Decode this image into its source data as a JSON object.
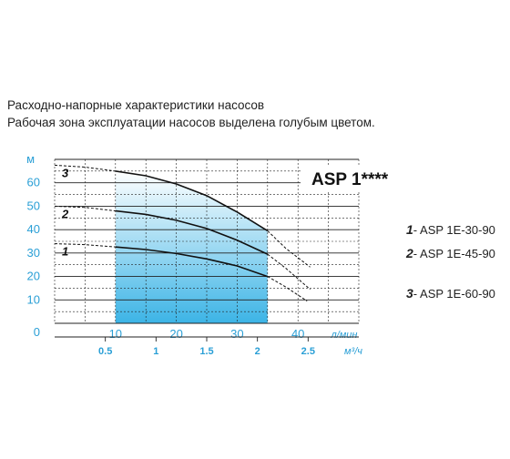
{
  "captions": {
    "line1": "Расходно-напорные характеристики насосов",
    "line2": "Рабочая зона эксплуатации насосов выделена голубым цветом."
  },
  "chart_data": {
    "type": "line",
    "title": "ASP 1****",
    "ylabel": "м",
    "xlabel": "л/мин",
    "x2label": "м³/ч",
    "ylim": [
      0,
      70
    ],
    "xlim": [
      0,
      50
    ],
    "y_ticks": [
      "0",
      "10",
      "20",
      "30",
      "40",
      "50",
      "60"
    ],
    "x_ticks": [
      "10",
      "20",
      "30",
      "40"
    ],
    "x2_ticks": [
      "0.5",
      "1",
      "1.5",
      "2",
      "2.5"
    ],
    "working_zone": {
      "x_from": 10,
      "x_to": 35,
      "color": "#3cb4e6"
    },
    "grid": true,
    "series": [
      {
        "id": "1",
        "name": "ASP 1E-30-90",
        "solid": {
          "x": [
            10,
            15,
            20,
            25,
            30,
            35
          ],
          "y": [
            32.6,
            31.5,
            29.8,
            27.5,
            24.5,
            20.0
          ]
        },
        "dashed_left": {
          "x": [
            0,
            5,
            10
          ],
          "y": [
            34.0,
            33.6,
            32.6
          ]
        },
        "dashed_right": {
          "x": [
            35,
            38,
            41.5
          ],
          "y": [
            20.0,
            15.5,
            9.5
          ]
        }
      },
      {
        "id": "2",
        "name": "ASP 1E-45-90",
        "solid": {
          "x": [
            10,
            15,
            20,
            25,
            30,
            35
          ],
          "y": [
            48.0,
            46.5,
            44.0,
            40.5,
            35.5,
            29.5
          ]
        },
        "dashed_left": {
          "x": [
            0,
            5,
            10
          ],
          "y": [
            50.0,
            49.5,
            48.0
          ]
        },
        "dashed_right": {
          "x": [
            35,
            38,
            42
          ],
          "y": [
            29.5,
            23.5,
            14.5
          ]
        }
      },
      {
        "id": "3",
        "name": "ASP 1E-60-90",
        "solid": {
          "x": [
            10,
            15,
            20,
            25,
            30,
            35
          ],
          "y": [
            65.0,
            63.0,
            59.5,
            54.5,
            47.5,
            39.5
          ]
        },
        "dashed_left": {
          "x": [
            0,
            5,
            10
          ],
          "y": [
            67.5,
            66.7,
            65.0
          ]
        },
        "dashed_right": {
          "x": [
            35,
            38,
            42
          ],
          "y": [
            39.5,
            32.0,
            24.0
          ]
        }
      }
    ]
  }
}
